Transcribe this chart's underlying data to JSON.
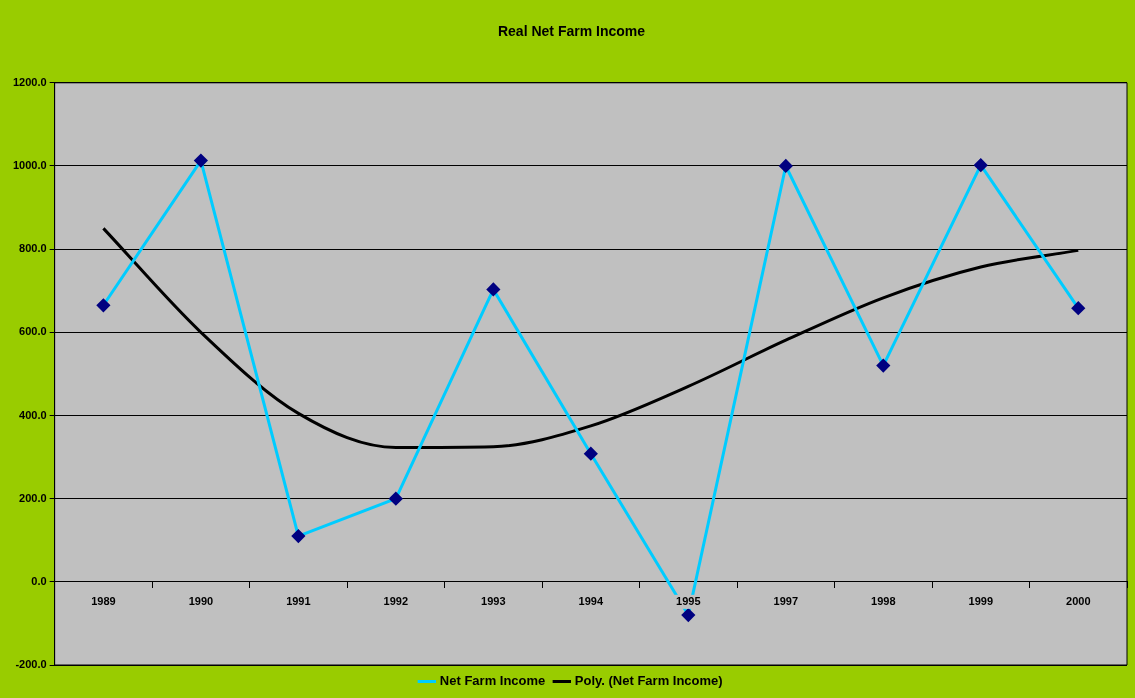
{
  "chart_data": {
    "type": "line",
    "title": "Real Net Farm Income",
    "categories": [
      "1989",
      "1990",
      "1991",
      "1992",
      "1993",
      "1994",
      "1995",
      "1997",
      "1998",
      "1999",
      "2000"
    ],
    "series": [
      {
        "name": "Net Farm Income",
        "color": "#00ccff",
        "marker": "diamond",
        "values": [
          665,
          1013,
          110,
          200,
          703,
          308,
          -80,
          1000,
          520,
          1002,
          658
        ]
      },
      {
        "name": "Poly. (Net Farm Income)",
        "color": "#000000",
        "marker": "none",
        "values": [
          850,
          600,
          405,
          323,
          325,
          375,
          470,
          581,
          683,
          757,
          797
        ]
      }
    ],
    "ylim": [
      -200,
      1200
    ],
    "yticks": [
      {
        "value": -200,
        "label": "-200.0"
      },
      {
        "value": 0,
        "label": "0.0"
      },
      {
        "value": 200,
        "label": "200.0"
      },
      {
        "value": 400,
        "label": "400.0"
      },
      {
        "value": 600,
        "label": "600.0"
      },
      {
        "value": 800,
        "label": "800.0"
      },
      {
        "value": 1000,
        "label": "1000.0"
      },
      {
        "value": 1200,
        "label": "1200.0"
      }
    ],
    "grid": "y",
    "legend": "bottom"
  }
}
